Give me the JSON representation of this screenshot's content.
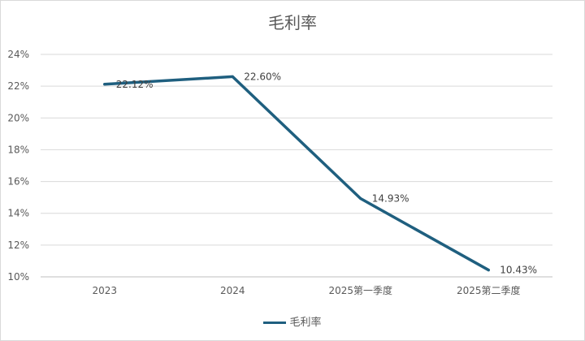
{
  "chart_data": {
    "type": "line",
    "title": "毛利率",
    "categories": [
      "2023",
      "2024",
      "2025第一季度",
      "2025第二季度"
    ],
    "series": [
      {
        "name": "毛利率",
        "values": [
          22.12,
          22.6,
          14.93,
          10.43
        ],
        "labels": [
          "22.12%",
          "22.60%",
          "14.93%",
          "10.43%"
        ]
      }
    ],
    "ylim": [
      10,
      24
    ],
    "yticks": [
      "10%",
      "12%",
      "14%",
      "16%",
      "18%",
      "20%",
      "22%",
      "24%"
    ],
    "grid": true,
    "legend": "bottom",
    "color": "#1f5f7f"
  }
}
